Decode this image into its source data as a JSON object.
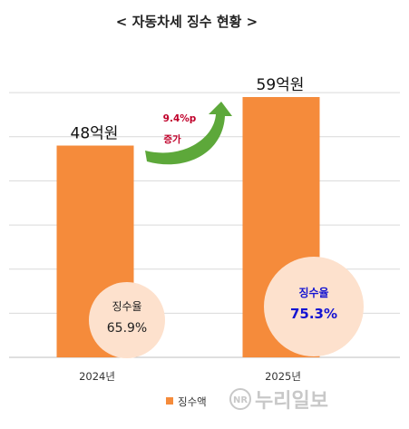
{
  "chart_data": {
    "type": "bar",
    "title": "< 자동차세 징수 현황 >",
    "categories": [
      "2024년",
      "2025년"
    ],
    "series": [
      {
        "name": "징수액",
        "values": [
          48,
          59
        ],
        "labels": [
          "48억원",
          "59억원"
        ],
        "color": "#f58b3b"
      }
    ],
    "ylim": [
      0,
      70
    ],
    "grid": true,
    "legend": {
      "position": "bottom",
      "label": "징수액"
    },
    "collection_rate": {
      "label": "징수율",
      "values": [
        "65.9%",
        "75.3%"
      ],
      "highlight_index": 1,
      "highlight_color": "#1414d2"
    },
    "annotation": {
      "text_line1": "9.4%p",
      "text_line2": "증가",
      "text_color": "#c0002a",
      "arrow_color": "#5da83a"
    }
  },
  "watermark": {
    "text": "누리일보",
    "badge": "NR"
  }
}
